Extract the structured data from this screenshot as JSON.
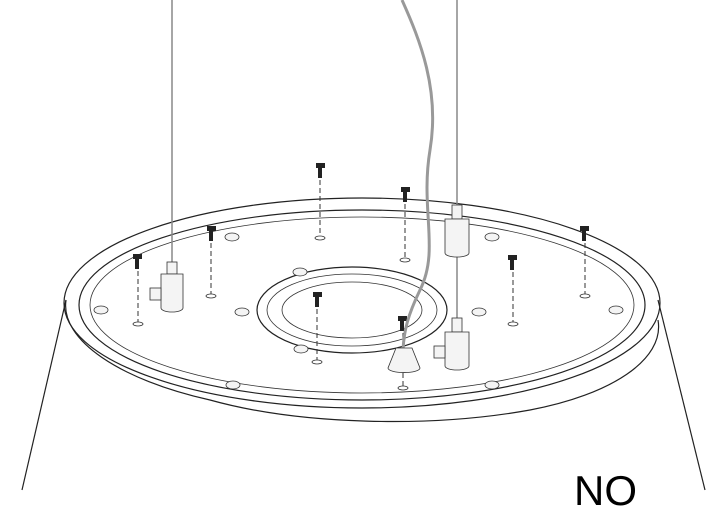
{
  "label": "NO"
}
